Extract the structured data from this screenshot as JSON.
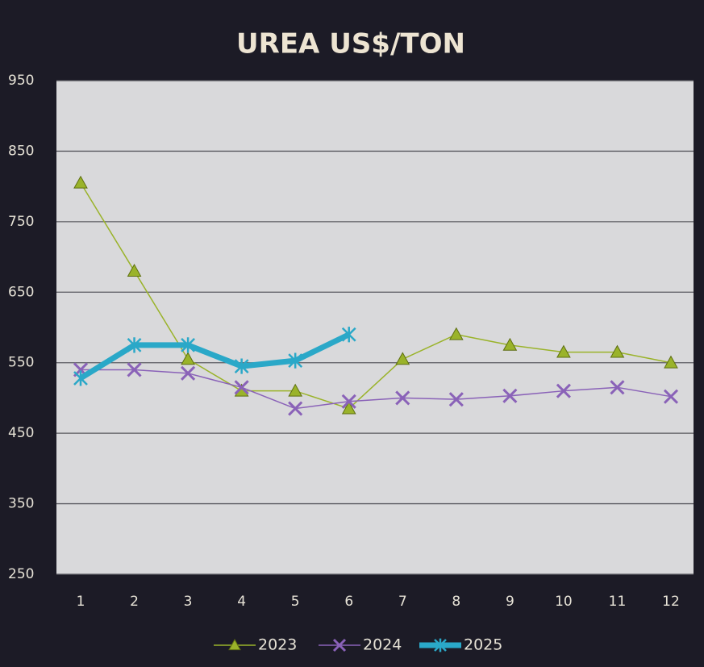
{
  "chart_data": {
    "type": "line",
    "title": "UREA US$/TON",
    "categories": [
      "1",
      "2",
      "3",
      "4",
      "5",
      "6",
      "7",
      "8",
      "9",
      "10",
      "11",
      "12"
    ],
    "series": [
      {
        "name": "2023",
        "color": "#9ab32a",
        "marker": "triangle",
        "values": [
          805,
          680,
          555,
          510,
          510,
          485,
          555,
          590,
          575,
          565,
          565,
          550
        ]
      },
      {
        "name": "2024",
        "color": "#8a62b8",
        "marker": "x",
        "values": [
          540,
          540,
          535,
          515,
          485,
          495,
          500,
          498,
          503,
          510,
          515,
          502
        ]
      },
      {
        "name": "2025",
        "color": "#2aa8c8",
        "marker": "star",
        "values": [
          528,
          575,
          575,
          545,
          553,
          590,
          null,
          null,
          null,
          null,
          null,
          null
        ]
      }
    ],
    "ylim": [
      250,
      950
    ],
    "yticks": [
      250,
      350,
      450,
      550,
      650,
      750,
      850,
      950
    ],
    "grid": true,
    "legend": "bottom"
  }
}
